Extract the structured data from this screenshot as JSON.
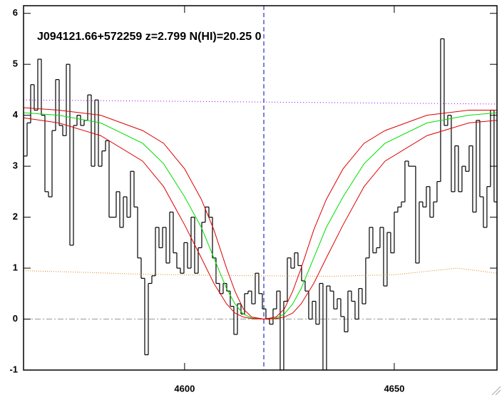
{
  "chart_data": {
    "type": "line",
    "annotation": "J094121.66+572259 z=2.799 N(HI)=20.25 0",
    "xlim": [
      4561.6,
      4674.5
    ],
    "ylim": [
      -1,
      6.15
    ],
    "xticks": [
      4600,
      4650
    ],
    "yticks": [
      -1,
      0,
      1,
      2,
      3,
      4,
      5,
      6
    ],
    "vlines": [
      {
        "x": 4618.9,
        "color": "#0000b0",
        "dash": "6 4"
      }
    ],
    "hlines": [
      {
        "y": 0,
        "color": "#999999",
        "dash": "8 3 2 3"
      }
    ],
    "series": [
      {
        "color": "#000000",
        "drawstyle": "steps",
        "x": [
          4561.6,
          4562.45,
          4563.3,
          4564.15,
          4565.0,
          4565.85,
          4566.7,
          4567.55,
          4568.4,
          4569.25,
          4570.1,
          4570.95,
          4571.8,
          4572.65,
          4573.5,
          4574.35,
          4575.2,
          4576.05,
          4576.9,
          4577.75,
          4578.6,
          4579.45,
          4580.3,
          4581.15,
          4582.0,
          4582.85,
          4583.7,
          4584.55,
          4585.4,
          4586.25,
          4587.1,
          4587.95,
          4588.8,
          4589.65,
          4590.5,
          4591.35,
          4592.2,
          4593.05,
          4593.9,
          4594.75,
          4595.6,
          4596.45,
          4597.3,
          4598.15,
          4599.0,
          4599.85,
          4600.7,
          4601.55,
          4602.4,
          4603.25,
          4604.1,
          4604.95,
          4605.8,
          4606.65,
          4607.5,
          4608.35,
          4609.2,
          4610.05,
          4610.9,
          4611.75,
          4612.6,
          4613.45,
          4614.3,
          4615.15,
          4616.0,
          4616.85,
          4617.7,
          4618.55,
          4619.4,
          4620.25,
          4621.1,
          4621.95,
          4622.8,
          4623.65,
          4624.5,
          4625.35,
          4626.2,
          4627.05,
          4627.9,
          4628.75,
          4629.6,
          4630.45,
          4631.3,
          4632.15,
          4633.0,
          4633.85,
          4634.7,
          4635.55,
          4636.4,
          4637.25,
          4638.1,
          4638.95,
          4639.8,
          4640.65,
          4641.5,
          4642.35,
          4643.2,
          4644.05,
          4644.9,
          4645.75,
          4646.6,
          4647.45,
          4648.3,
          4649.15,
          4650.0,
          4650.85,
          4651.7,
          4652.55,
          4653.4,
          4654.25,
          4655.1,
          4655.95,
          4656.8,
          4657.65,
          4658.5,
          4659.35,
          4660.2,
          4661.05,
          4661.9,
          4662.75,
          4663.6,
          4664.45,
          4665.3,
          4666.15,
          4667.0,
          4667.85,
          4668.7,
          4669.55,
          4670.4,
          4671.25,
          4672.1,
          4672.95,
          4673.8
        ],
        "values": [
          3.2,
          3.85,
          4.6,
          4.1,
          5.1,
          4.0,
          2.5,
          2.4,
          3.7,
          4.7,
          3.8,
          3.6,
          5.0,
          1.45,
          3.8,
          4.0,
          3.8,
          3.9,
          4.4,
          3.0,
          4.3,
          3.0,
          3.3,
          3.5,
          2.0,
          2.0,
          2.5,
          1.8,
          2.4,
          2.0,
          2.9,
          2.2,
          1.2,
          0.8,
          -0.7,
          0.7,
          0.85,
          1.8,
          1.4,
          1.8,
          1.1,
          2.1,
          1.3,
          1.0,
          0.9,
          1.5,
          1.0,
          2.0,
          0.9,
          1.4,
          1.9,
          2.2,
          2.0,
          1.2,
          0.7,
          0.5,
          0.7,
          0.55,
          0.25,
          -0.3,
          0.3,
          0.1,
          0.5,
          0.55,
          0.3,
          0.9,
          0.5,
          0.2,
          0.0,
          -0.1,
          0.2,
          0.55,
          -1.0,
          0.35,
          1.2,
          1.0,
          1.3,
          1.05,
          0.75,
          0.55,
          0.0,
          0.35,
          -0.1,
          0.7,
          -1.0,
          0.65,
          0.55,
          0.2,
          0.4,
          0.05,
          -0.25,
          0.55,
          0.35,
          0.0,
          0.6,
          0.3,
          1.2,
          1.8,
          1.3,
          1.4,
          1.8,
          0.65,
          1.7,
          1.3,
          2.1,
          2.2,
          2.3,
          3.1,
          3.0,
          3.0,
          1.1,
          2.3,
          2.2,
          2.6,
          2.0,
          2.3,
          2.7,
          5.5,
          3.8,
          4.0,
          2.5,
          3.4,
          2.5,
          3.0,
          2.9,
          3.4,
          2.1,
          3.9,
          2.4,
          1.8,
          2.6,
          4.1,
          2.3
        ]
      },
      {
        "color": "#9900ff",
        "dash": "1 3",
        "x": [
          4561.6,
          4674.5
        ],
        "values": [
          4.3,
          4.22
        ]
      },
      {
        "color": "#e08020",
        "dash": "1 2",
        "x": [
          4561.6,
          4575,
          4590,
          4605,
          4620,
          4635,
          4650,
          4665,
          4674.5
        ],
        "values": [
          0.95,
          0.92,
          0.88,
          0.86,
          0.85,
          0.84,
          0.87,
          1.0,
          0.9
        ]
      },
      {
        "color": "#00dd00",
        "x": [
          4561.6,
          4570,
          4580,
          4590,
          4595,
          4600,
          4604,
          4607,
          4610,
          4612,
          4614,
          4616,
          4618.9,
          4621.8,
          4623.8,
          4625.8,
          4627.8,
          4630.8,
          4633.8,
          4637.8,
          4642.8,
          4647.8,
          4657.8,
          4667.8,
          4674.5
        ],
        "values": [
          4.05,
          4.0,
          3.85,
          3.45,
          3.05,
          2.4,
          1.8,
          1.2,
          0.6,
          0.3,
          0.1,
          0.02,
          0,
          0.02,
          0.1,
          0.3,
          0.6,
          1.2,
          1.8,
          2.4,
          3.05,
          3.45,
          3.85,
          4.0,
          4.05
        ]
      },
      {
        "color": "#dd0000",
        "x": [
          4561.6,
          4570,
          4580,
          4590,
          4595,
          4600,
          4604,
          4607,
          4610,
          4612,
          4614,
          4616,
          4618.9,
          4621.8,
          4623.8,
          4625.8,
          4627.8,
          4630.8,
          4633.8,
          4637.8,
          4642.8,
          4647.8,
          4657.8,
          4667.8,
          4674.5
        ],
        "values": [
          4.15,
          4.1,
          4.0,
          3.7,
          3.45,
          2.95,
          2.35,
          1.75,
          1.0,
          0.55,
          0.2,
          0.04,
          0,
          0.04,
          0.2,
          0.55,
          1.0,
          1.75,
          2.35,
          2.95,
          3.45,
          3.7,
          4.0,
          4.1,
          4.1
        ]
      },
      {
        "color": "#dd0000",
        "x": [
          4561.6,
          4570,
          4580,
          4590,
          4595,
          4600,
          4604,
          4607,
          4610,
          4612,
          4614,
          4616,
          4618.9,
          4621.8,
          4623.8,
          4625.8,
          4627.8,
          4630.8,
          4633.8,
          4637.8,
          4642.8,
          4647.8,
          4657.8,
          4667.8,
          4674.5
        ],
        "values": [
          3.95,
          3.85,
          3.6,
          3.1,
          2.6,
          1.85,
          1.2,
          0.7,
          0.3,
          0.12,
          0.04,
          0.01,
          0,
          0.01,
          0.04,
          0.12,
          0.3,
          0.7,
          1.2,
          1.85,
          2.6,
          3.1,
          3.6,
          3.85,
          3.9
        ]
      }
    ]
  }
}
